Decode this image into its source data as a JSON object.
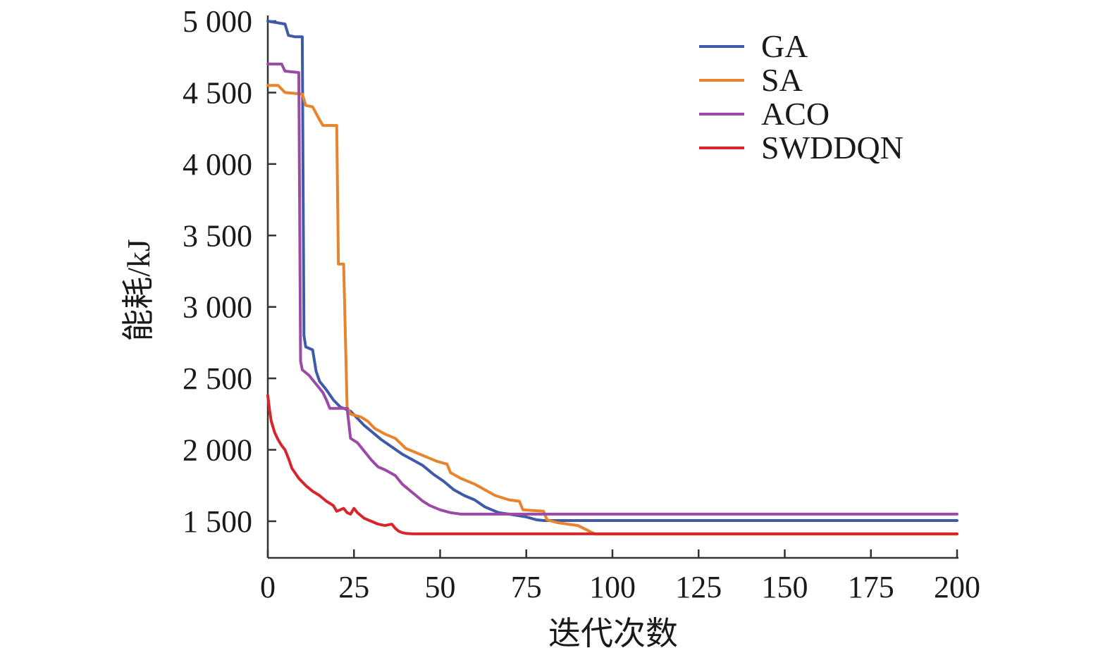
{
  "chart_data": {
    "type": "line",
    "title": "",
    "xlabel": "迭代次数",
    "ylabel": "能耗/kJ",
    "xlim": [
      0,
      200
    ],
    "ylim": [
      1240,
      5000
    ],
    "xticks": [
      0,
      25,
      50,
      75,
      100,
      125,
      150,
      175,
      200
    ],
    "xtick_labels": [
      "0",
      "25",
      "50",
      "75",
      "100",
      "125",
      "150",
      "175",
      "200"
    ],
    "yticks": [
      1500,
      2000,
      2500,
      3000,
      3500,
      4000,
      4500,
      5000
    ],
    "ytick_labels": [
      "1 500",
      "2 000",
      "2 500",
      "3 000",
      "3 500",
      "4 000",
      "4 500",
      "5 000"
    ],
    "legend_position": "top-right",
    "series": [
      {
        "name": "GA",
        "color": "#3f5aa8",
        "points": [
          [
            0,
            5000
          ],
          [
            5,
            4980
          ],
          [
            6,
            4900
          ],
          [
            8,
            4890
          ],
          [
            10,
            4890
          ],
          [
            10.5,
            2800
          ],
          [
            11,
            2720
          ],
          [
            13,
            2700
          ],
          [
            14,
            2550
          ],
          [
            15,
            2480
          ],
          [
            17,
            2420
          ],
          [
            19,
            2350
          ],
          [
            21,
            2300
          ],
          [
            24,
            2270
          ],
          [
            26,
            2220
          ],
          [
            28,
            2170
          ],
          [
            30,
            2130
          ],
          [
            33,
            2070
          ],
          [
            36,
            2020
          ],
          [
            39,
            1970
          ],
          [
            42,
            1930
          ],
          [
            45,
            1890
          ],
          [
            48,
            1830
          ],
          [
            51,
            1780
          ],
          [
            54,
            1720
          ],
          [
            57,
            1680
          ],
          [
            60,
            1650
          ],
          [
            63,
            1600
          ],
          [
            67,
            1560
          ],
          [
            70,
            1550
          ],
          [
            75,
            1530
          ],
          [
            78,
            1510
          ],
          [
            80,
            1505
          ],
          [
            200,
            1505
          ]
        ]
      },
      {
        "name": "SA",
        "color": "#e8832e",
        "points": [
          [
            0,
            4550
          ],
          [
            3,
            4550
          ],
          [
            5,
            4500
          ],
          [
            10,
            4490
          ],
          [
            11,
            4410
          ],
          [
            13,
            4400
          ],
          [
            15,
            4310
          ],
          [
            16,
            4270
          ],
          [
            20,
            4270
          ],
          [
            20.5,
            3300
          ],
          [
            22,
            3300
          ],
          [
            23,
            2300
          ],
          [
            24,
            2250
          ],
          [
            27,
            2230
          ],
          [
            29,
            2200
          ],
          [
            31,
            2150
          ],
          [
            34,
            2110
          ],
          [
            37,
            2080
          ],
          [
            40,
            2010
          ],
          [
            43,
            1980
          ],
          [
            46,
            1950
          ],
          [
            49,
            1920
          ],
          [
            52,
            1900
          ],
          [
            53,
            1840
          ],
          [
            56,
            1800
          ],
          [
            60,
            1760
          ],
          [
            63,
            1720
          ],
          [
            66,
            1680
          ],
          [
            70,
            1650
          ],
          [
            73,
            1640
          ],
          [
            74,
            1580
          ],
          [
            80,
            1570
          ],
          [
            81,
            1510
          ],
          [
            84,
            1490
          ],
          [
            90,
            1470
          ],
          [
            95,
            1410
          ],
          [
            200,
            1410
          ]
        ]
      },
      {
        "name": "ACO",
        "color": "#9b4aa6",
        "points": [
          [
            0,
            4700
          ],
          [
            4,
            4700
          ],
          [
            5,
            4650
          ],
          [
            9,
            4640
          ],
          [
            9.5,
            2620
          ],
          [
            10,
            2560
          ],
          [
            12,
            2520
          ],
          [
            14,
            2460
          ],
          [
            16,
            2400
          ],
          [
            17,
            2350
          ],
          [
            18,
            2290
          ],
          [
            23,
            2290
          ],
          [
            24,
            2080
          ],
          [
            26,
            2050
          ],
          [
            28,
            1990
          ],
          [
            30,
            1930
          ],
          [
            32,
            1880
          ],
          [
            34,
            1860
          ],
          [
            37,
            1820
          ],
          [
            39,
            1760
          ],
          [
            41,
            1720
          ],
          [
            43,
            1680
          ],
          [
            45,
            1640
          ],
          [
            47,
            1610
          ],
          [
            50,
            1580
          ],
          [
            53,
            1560
          ],
          [
            56,
            1550
          ],
          [
            200,
            1550
          ]
        ]
      },
      {
        "name": "SWDDQN",
        "color": "#d7262b",
        "points": [
          [
            0,
            2380
          ],
          [
            0.5,
            2280
          ],
          [
            1,
            2200
          ],
          [
            2,
            2120
          ],
          [
            3,
            2070
          ],
          [
            4,
            2030
          ],
          [
            5,
            2000
          ],
          [
            6,
            1940
          ],
          [
            7,
            1870
          ],
          [
            9,
            1800
          ],
          [
            11,
            1750
          ],
          [
            13,
            1710
          ],
          [
            15,
            1680
          ],
          [
            17,
            1640
          ],
          [
            19,
            1610
          ],
          [
            20,
            1570
          ],
          [
            21,
            1580
          ],
          [
            22,
            1590
          ],
          [
            23,
            1560
          ],
          [
            24,
            1550
          ],
          [
            25,
            1590
          ],
          [
            26,
            1560
          ],
          [
            27,
            1540
          ],
          [
            28,
            1520
          ],
          [
            30,
            1500
          ],
          [
            32,
            1480
          ],
          [
            34,
            1470
          ],
          [
            36,
            1480
          ],
          [
            37,
            1450
          ],
          [
            38,
            1430
          ],
          [
            39,
            1420
          ],
          [
            40,
            1415
          ],
          [
            42,
            1412
          ],
          [
            200,
            1412
          ]
        ]
      }
    ]
  }
}
